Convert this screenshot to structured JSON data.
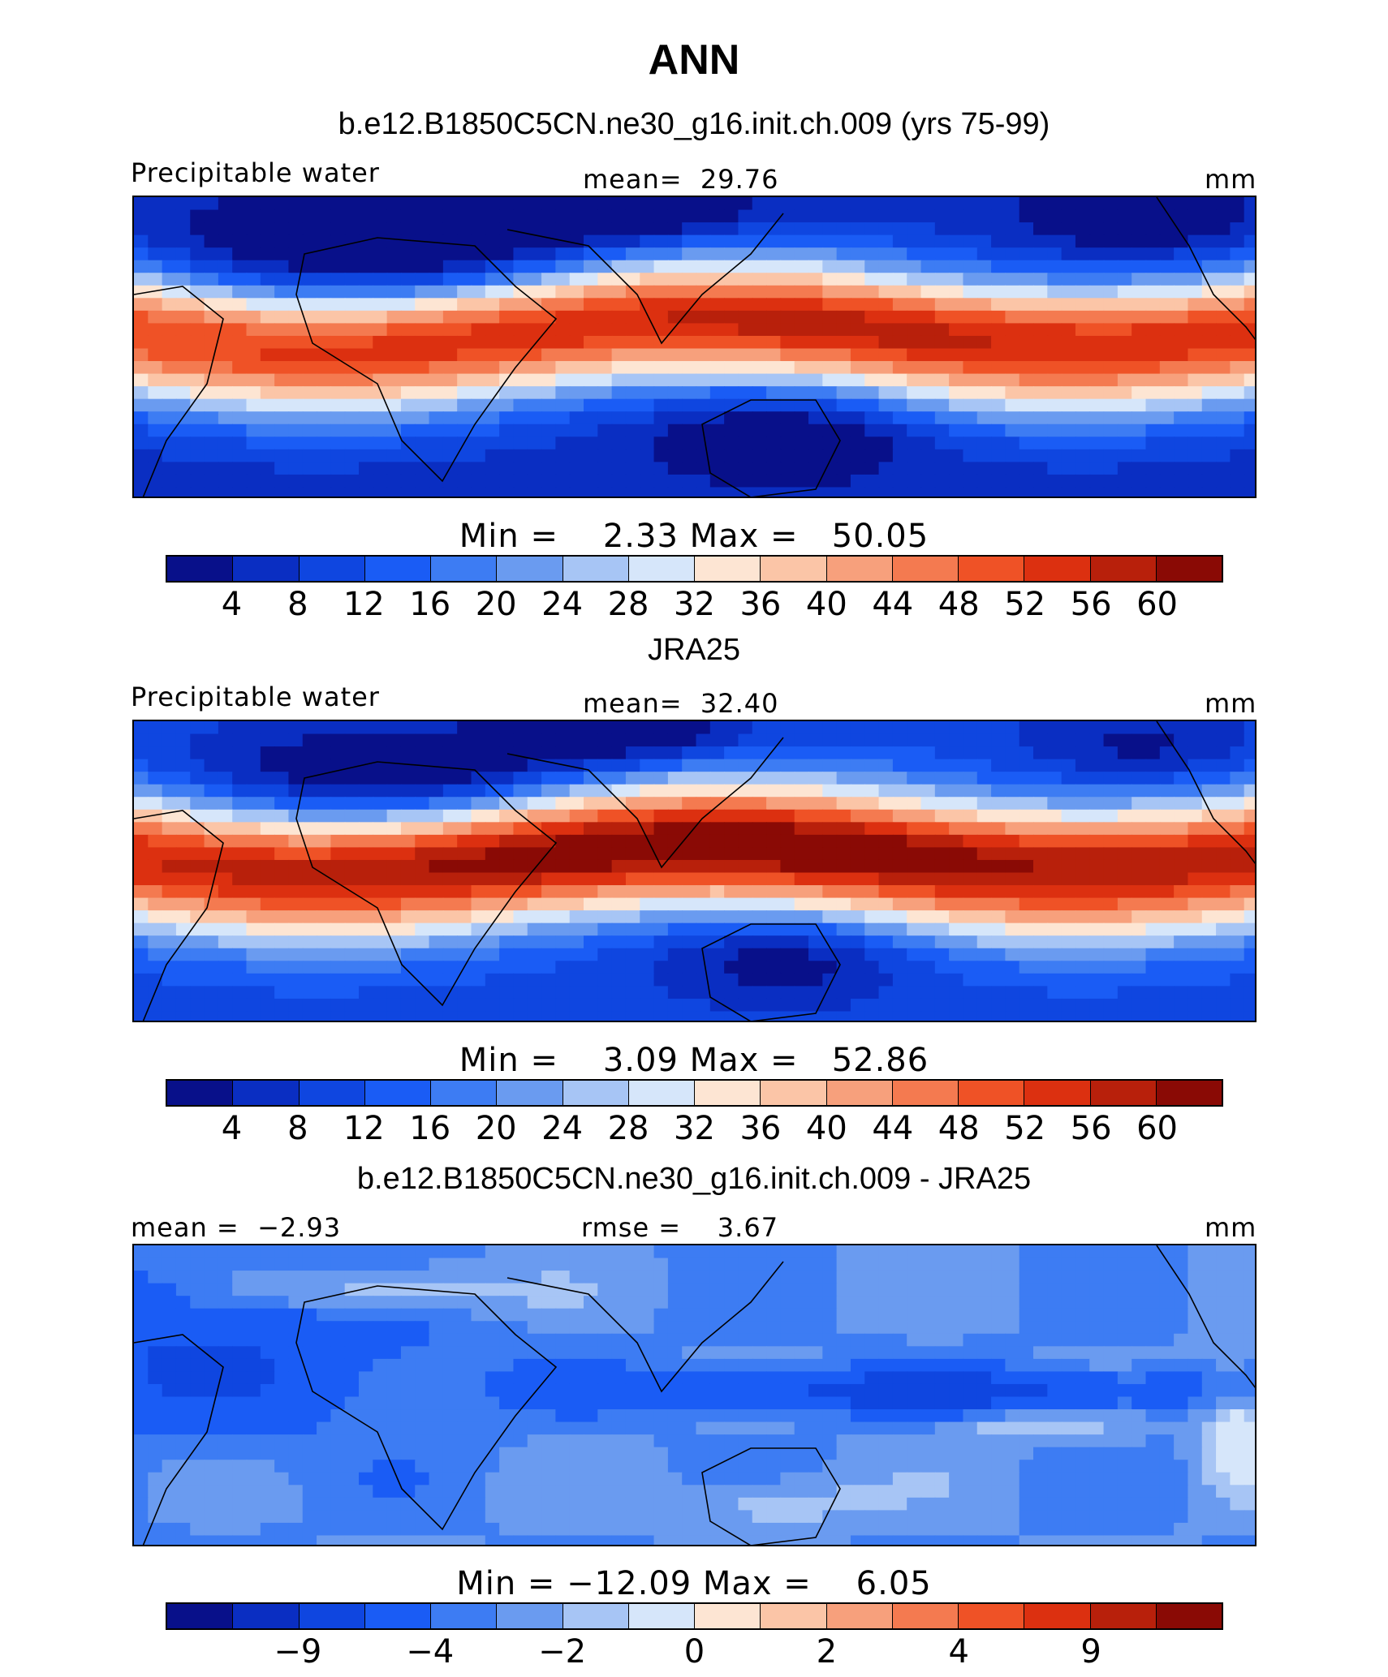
{
  "title": "ANN",
  "units": "mm",
  "palette": [
    "#08108a",
    "#0a2ec2",
    "#0f46e0",
    "#1a5cf5",
    "#3d7cf3",
    "#6a9bf0",
    "#a7c5f5",
    "#d6e6fa",
    "#fde5d3",
    "#fbc5a7",
    "#f7a07c",
    "#f47a50",
    "#ef5226",
    "#dc3010",
    "#b8200b",
    "#8a0a05"
  ],
  "panels": [
    {
      "subtitle": "b.e12.B1850C5CN.ne30_g16.init.ch.009 (yrs 75-99)",
      "left_label": "Precipitable water",
      "center_label": "mean=  29.76",
      "right_label": "mm",
      "minmax": "Min =    2.33 Max =   50.05",
      "tick_labels": [
        "4",
        "8",
        "12",
        "16",
        "20",
        "24",
        "28",
        "32",
        "36",
        "40",
        "44",
        "48",
        "52",
        "56",
        "60"
      ],
      "chart_data": {
        "type": "heatmap",
        "variable": "Precipitable water",
        "mean": 29.76,
        "min": 2.33,
        "max": 50.05,
        "contour_levels": [
          4,
          8,
          12,
          16,
          20,
          24,
          28,
          32,
          36,
          40,
          44,
          48,
          52,
          56,
          60
        ]
      }
    },
    {
      "subtitle": "JRA25",
      "left_label": "Precipitable water",
      "center_label": "mean=  32.40",
      "right_label": "mm",
      "minmax": "Min =    3.09 Max =   52.86",
      "tick_labels": [
        "4",
        "8",
        "12",
        "16",
        "20",
        "24",
        "28",
        "32",
        "36",
        "40",
        "44",
        "48",
        "52",
        "56",
        "60"
      ],
      "chart_data": {
        "type": "heatmap",
        "variable": "Precipitable water",
        "mean": 32.4,
        "min": 3.09,
        "max": 52.86,
        "contour_levels": [
          4,
          8,
          12,
          16,
          20,
          24,
          28,
          32,
          36,
          40,
          44,
          48,
          52,
          56,
          60
        ]
      }
    },
    {
      "subtitle": "b.e12.B1850C5CN.ne30_g16.init.ch.009 - JRA25",
      "left_label": "mean =  −2.93",
      "center_label": "rmse =    3.67",
      "right_label": "mm",
      "minmax": "Min = −12.09 Max =    6.05",
      "tick_labels": [
        "",
        "−9",
        "",
        "−4",
        "",
        "−2",
        "",
        "0",
        "",
        "2",
        "",
        "4",
        "",
        "9",
        ""
      ],
      "chart_data": {
        "type": "heatmap",
        "variable": "difference",
        "mean": -2.93,
        "rmse": 3.67,
        "min": -12.09,
        "max": 6.05,
        "contour_levels": [
          -9,
          -4,
          -2,
          0,
          2,
          4,
          9
        ]
      }
    }
  ]
}
